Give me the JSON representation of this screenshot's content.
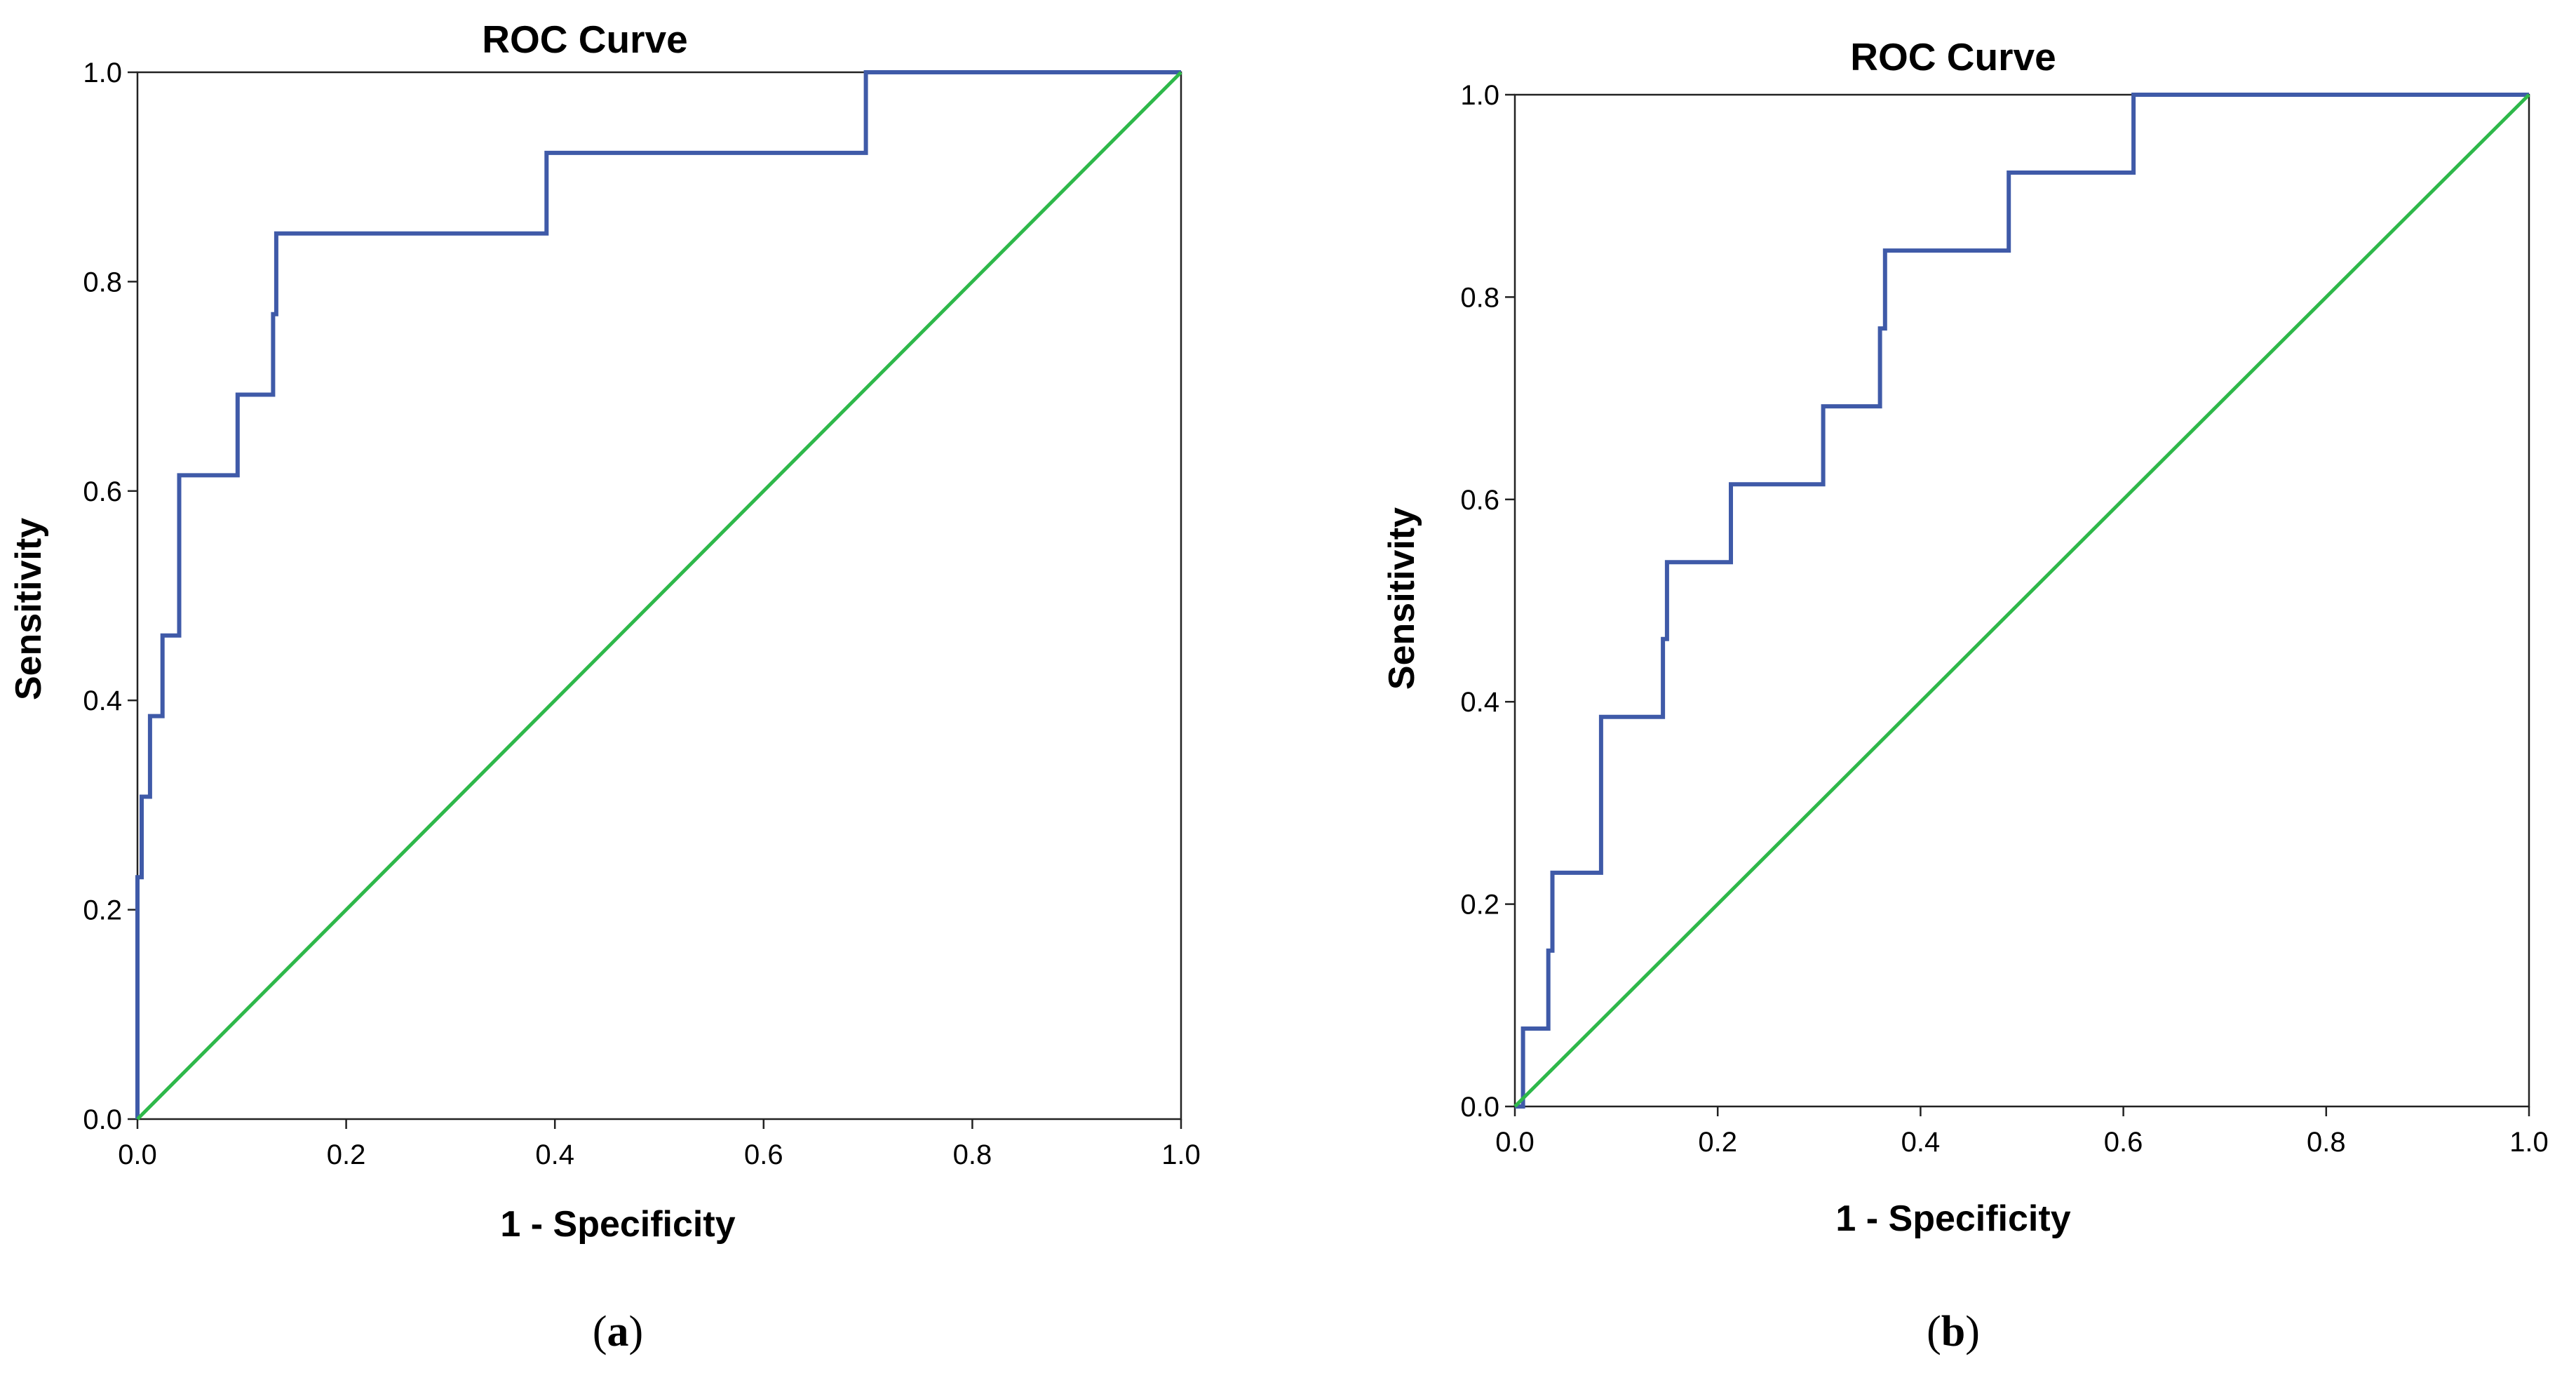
{
  "chart_data": [
    {
      "type": "line",
      "panel_label": "(a)",
      "panel_letter": "a",
      "title": "ROC Curve",
      "xlabel": "1 - Specificity",
      "ylabel": "Sensitivity",
      "xlim": [
        0,
        1
      ],
      "ylim": [
        0,
        1
      ],
      "xticks": [
        0.0,
        0.2,
        0.4,
        0.6,
        0.8,
        1.0
      ],
      "yticks": [
        0.0,
        0.2,
        0.4,
        0.6,
        0.8,
        1.0
      ],
      "tick_labels": [
        "0.0",
        "0.2",
        "0.4",
        "0.6",
        "0.8",
        "1.0"
      ],
      "grid": false,
      "series": [
        {
          "name": "ROC",
          "color": "#3f5aa8",
          "x": [
            0.0,
            0.0,
            0.004,
            0.004,
            0.012,
            0.012,
            0.024,
            0.024,
            0.04,
            0.04,
            0.096,
            0.096,
            0.13,
            0.13,
            0.133,
            0.133,
            0.392,
            0.392,
            0.698,
            0.698,
            1.0
          ],
          "y": [
            0.0,
            0.231,
            0.231,
            0.308,
            0.308,
            0.385,
            0.385,
            0.462,
            0.462,
            0.615,
            0.615,
            0.692,
            0.692,
            0.769,
            0.769,
            0.846,
            0.846,
            0.923,
            0.923,
            1.0,
            1.0
          ]
        },
        {
          "name": "Reference Line",
          "color": "#2eb84a",
          "x": [
            0,
            1
          ],
          "y": [
            0,
            1
          ]
        }
      ]
    },
    {
      "type": "line",
      "panel_label": "(b)",
      "panel_letter": "b",
      "title": "ROC Curve",
      "xlabel": "1 - Specificity",
      "ylabel": "Sensitivity",
      "xlim": [
        0,
        1
      ],
      "ylim": [
        0,
        1
      ],
      "xticks": [
        0.0,
        0.2,
        0.4,
        0.6,
        0.8,
        1.0
      ],
      "yticks": [
        0.0,
        0.2,
        0.4,
        0.6,
        0.8,
        1.0
      ],
      "tick_labels": [
        "0.0",
        "0.2",
        "0.4",
        "0.6",
        "0.8",
        "1.0"
      ],
      "grid": false,
      "series": [
        {
          "name": "ROC",
          "color": "#3f5aa8",
          "x": [
            0.0,
            0.008,
            0.008,
            0.033,
            0.033,
            0.037,
            0.037,
            0.085,
            0.085,
            0.146,
            0.146,
            0.15,
            0.15,
            0.213,
            0.213,
            0.304,
            0.304,
            0.36,
            0.36,
            0.365,
            0.365,
            0.487,
            0.487,
            0.61,
            0.61,
            1.0
          ],
          "y": [
            0.0,
            0.0,
            0.077,
            0.077,
            0.154,
            0.154,
            0.231,
            0.231,
            0.385,
            0.385,
            0.462,
            0.462,
            0.538,
            0.538,
            0.615,
            0.615,
            0.692,
            0.692,
            0.769,
            0.769,
            0.846,
            0.846,
            0.923,
            0.923,
            1.0,
            1.0
          ]
        },
        {
          "name": "Reference Line",
          "color": "#2eb84a",
          "x": [
            0,
            1
          ],
          "y": [
            0,
            1
          ]
        }
      ]
    }
  ]
}
